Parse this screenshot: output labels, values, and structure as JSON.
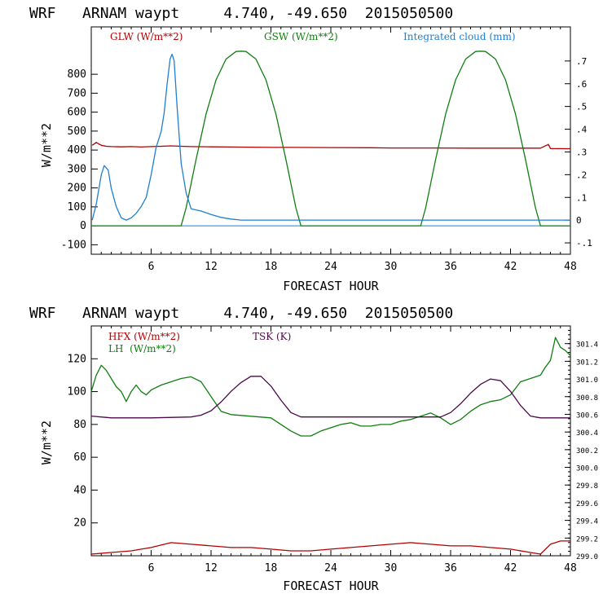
{
  "chart_data": [
    {
      "type": "line",
      "title": "WRF   ARNAM waypt     4.740, -49.650  2015050500",
      "xlabel": "FORECAST HOUR",
      "ylabel": "W/m**2",
      "xlim": [
        0,
        48
      ],
      "ylim": [
        -150,
        1050
      ],
      "y2lim": [
        -0.15,
        0.85
      ],
      "xticks": [
        "6",
        "12",
        "18",
        "24",
        "30",
        "36",
        "42",
        "48"
      ],
      "yticks": [
        "-100",
        "0",
        "100",
        "200",
        "300",
        "400",
        "500",
        "600",
        "700",
        "800"
      ],
      "y2ticks": [
        "-.1",
        "0",
        ".1",
        ".2",
        ".3",
        ".4",
        ".5",
        ".6",
        ".7"
      ],
      "series": [
        {
          "name": "GLW (W/m**2)",
          "color": "#b20000",
          "axis": "left",
          "x": [
            0.1,
            0.5,
            1,
            1.5,
            2,
            3,
            4,
            5,
            6,
            7,
            8,
            9,
            10,
            12,
            14,
            16,
            18,
            20,
            24,
            28,
            30,
            34,
            38,
            42,
            45,
            45.8,
            46,
            48
          ],
          "y": [
            425,
            440,
            425,
            420,
            418,
            417,
            418,
            416,
            418,
            420,
            422,
            420,
            418,
            417,
            416,
            415,
            414,
            414,
            413,
            412,
            411,
            411,
            410,
            410,
            410,
            430,
            408,
            407
          ]
        },
        {
          "name": "GSW (W/m**2)",
          "color": "#107e10",
          "axis": "left",
          "x": [
            0,
            9,
            9.5,
            10.5,
            11.5,
            12.5,
            13.5,
            14.5,
            15,
            15.5,
            16.5,
            17.5,
            18.5,
            19.5,
            20.5,
            21,
            33,
            33.5,
            34.5,
            35.5,
            36.5,
            37.5,
            38.5,
            39,
            39.5,
            40.5,
            41.5,
            42.5,
            43.5,
            44.5,
            45,
            48
          ],
          "y": [
            0,
            0,
            95,
            350,
            590,
            770,
            880,
            920,
            922,
            920,
            880,
            770,
            590,
            350,
            95,
            0,
            0,
            95,
            350,
            590,
            770,
            880,
            920,
            922,
            920,
            880,
            770,
            590,
            350,
            95,
            0,
            0
          ]
        },
        {
          "name": "Integrated cloud (mm)",
          "color": "#1f7fd0",
          "axis": "right",
          "x": [
            0.1,
            0.5,
            1,
            1.3,
            1.7,
            2,
            2.5,
            3,
            3.5,
            4,
            4.5,
            5,
            5.5,
            6,
            6.5,
            7,
            7.3,
            7.6,
            7.9,
            8.1,
            8.3,
            8.6,
            9,
            9.5,
            10,
            11,
            12,
            13,
            14,
            15,
            16,
            48
          ],
          "y": [
            0,
            0.07,
            0.2,
            0.24,
            0.22,
            0.14,
            0.06,
            0.01,
            0,
            0.01,
            0.03,
            0.06,
            0.1,
            0.2,
            0.32,
            0.39,
            0.47,
            0.6,
            0.71,
            0.73,
            0.7,
            0.5,
            0.25,
            0.12,
            0.05,
            0.04,
            0.025,
            0.012,
            0.005,
            0,
            0,
            0
          ]
        }
      ]
    },
    {
      "type": "line",
      "title": "WRF   ARNAM waypt     4.740, -49.650  2015050500",
      "xlabel": "FORECAST HOUR",
      "ylabel": "W/m**2",
      "xlim": [
        0,
        48
      ],
      "ylim": [
        0,
        140
      ],
      "y2lim": [
        299.0,
        301.6
      ],
      "xticks": [
        "6",
        "12",
        "18",
        "24",
        "30",
        "36",
        "42",
        "48"
      ],
      "yticks": [
        "20",
        "40",
        "60",
        "80",
        "100",
        "120"
      ],
      "y2ticks": [
        "299.0",
        "299.2",
        "299.4",
        "299.6",
        "299.8",
        "300.0",
        "300.2",
        "300.4",
        "300.6",
        "300.8",
        "301.0",
        "301.2",
        "301.4"
      ],
      "series": [
        {
          "name": "HFX (W/m**2)",
          "color": "#b20000",
          "axis": "left",
          "x": [
            0,
            2,
            4,
            6,
            8,
            10,
            12,
            14,
            16,
            18,
            20,
            22,
            24,
            26,
            28,
            30,
            32,
            34,
            36,
            38,
            40,
            42,
            44,
            45,
            46,
            47,
            48
          ],
          "y": [
            1,
            2,
            3,
            5,
            8,
            7,
            6,
            5,
            5,
            4,
            3,
            3,
            4,
            5,
            6,
            7,
            8,
            7,
            6,
            6,
            5,
            4,
            2,
            1,
            7,
            9,
            9
          ]
        },
        {
          "name": "LH  (W/m**2)",
          "color": "#107e10",
          "axis": "left",
          "x": [
            0,
            0.5,
            1,
            1.5,
            2,
            2.5,
            3,
            3.5,
            4,
            4.5,
            5,
            5.5,
            6,
            7,
            8,
            9,
            10,
            11,
            12,
            13,
            14,
            16,
            18,
            19,
            20,
            21,
            22,
            23,
            24,
            25,
            26,
            27,
            28,
            29,
            30,
            31,
            32,
            33,
            34,
            35,
            36,
            37,
            38,
            39,
            40,
            41,
            42,
            43,
            44,
            45,
            45.5,
            46,
            46.5,
            47,
            47.5,
            48
          ],
          "y": [
            100,
            110,
            116,
            113,
            108,
            103,
            100,
            94,
            100,
            104,
            100,
            98,
            101,
            104,
            106,
            108,
            109,
            106,
            97,
            88,
            86,
            85,
            84,
            80,
            76,
            73,
            73,
            76,
            78,
            80,
            81,
            79,
            79,
            80,
            80,
            82,
            83,
            85,
            87,
            84,
            80,
            83,
            88,
            92,
            94,
            95,
            98,
            106,
            108,
            110,
            115,
            119,
            133,
            127,
            125,
            122
          ]
        },
        {
          "name": "TSK (K)",
          "color": "#4a0a4a",
          "axis": "right",
          "x": [
            0,
            2,
            6,
            10,
            11,
            12,
            13,
            14,
            15,
            16,
            17,
            18,
            19,
            20,
            21,
            30,
            35,
            36,
            37,
            38,
            39,
            40,
            41,
            42,
            43,
            44,
            45,
            48
          ],
          "y": [
            300.58,
            300.56,
            300.56,
            300.57,
            300.59,
            300.64,
            300.74,
            300.86,
            300.96,
            301.03,
            301.03,
            300.92,
            300.76,
            300.62,
            300.57,
            300.57,
            300.57,
            300.62,
            300.72,
            300.84,
            300.94,
            301.0,
            300.98,
            300.86,
            300.7,
            300.58,
            300.56,
            300.56
          ]
        }
      ]
    }
  ]
}
